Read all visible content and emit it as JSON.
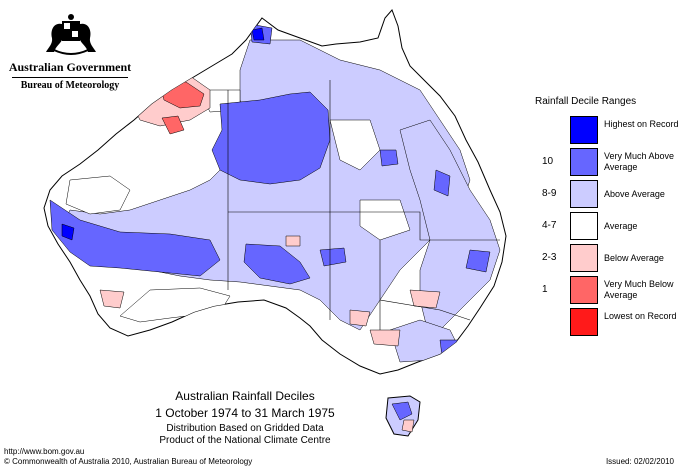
{
  "header": {
    "government": "Australian Government",
    "bureau": "Bureau of Meteorology",
    "crest_icon": "coat-of-arms-icon"
  },
  "legend": {
    "title": "Rainfall Decile Ranges",
    "ranges": [
      {
        "decile": "",
        "label": "Highest on Record",
        "color": "#0000ff"
      },
      {
        "decile": "10",
        "label": "Very Much Above Average",
        "color": "#6666ff"
      },
      {
        "decile": "8-9",
        "label": "Above Average",
        "color": "#ccccff"
      },
      {
        "decile": "4-7",
        "label": "Average",
        "color": "#ffffff"
      },
      {
        "decile": "2-3",
        "label": "Below Average",
        "color": "#ffcccc"
      },
      {
        "decile": "1",
        "label": "Very Much Below Average",
        "color": "#ff6666"
      },
      {
        "decile": "",
        "label": "Lowest on Record",
        "color": "#ff1a1a"
      }
    ]
  },
  "captions": {
    "title": "Australian Rainfall Deciles",
    "period": "1 October 1974 to 31 March 1975",
    "note1": "Distribution Based on Gridded Data",
    "note2": "Product of the National Climate Centre"
  },
  "footer": {
    "url": "http://www.bom.gov.au",
    "copyright": "© Commonwealth of Australia 2010, Australian Bureau of Meteorology",
    "issued": "Issued: 02/02/2010"
  }
}
